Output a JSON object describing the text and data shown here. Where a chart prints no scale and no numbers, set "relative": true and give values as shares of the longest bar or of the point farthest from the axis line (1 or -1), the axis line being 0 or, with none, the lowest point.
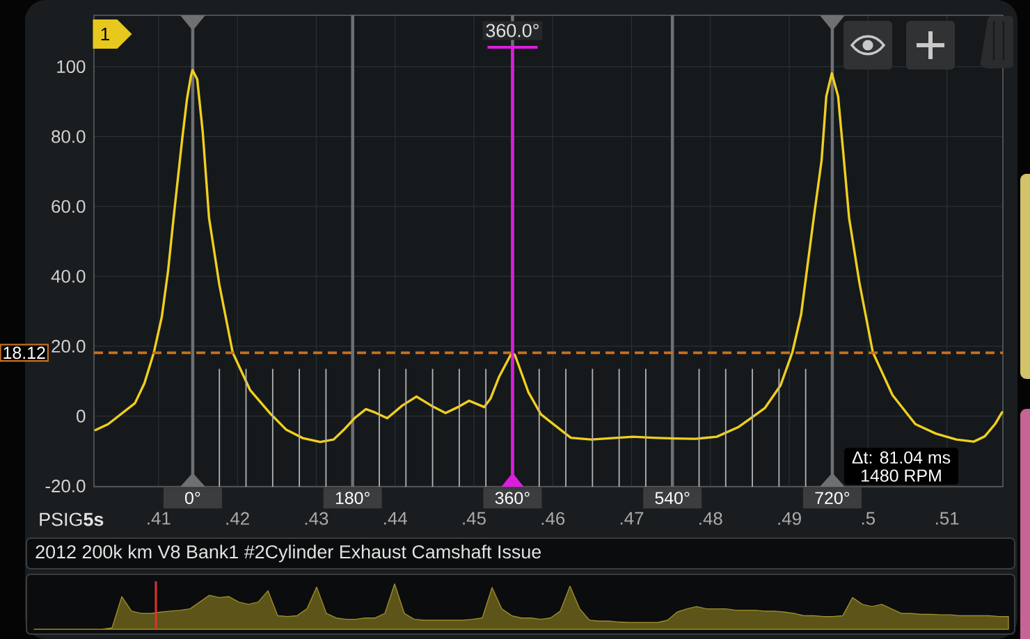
{
  "chart_data": [
    {
      "type": "line",
      "title": "2012 200k km V8 Bank1 #2Cylinder Exhaust Camshaft Issue",
      "ylabel": "PSIG**5s**",
      "x": [
        0.402,
        0.4036,
        0.4049,
        0.407,
        0.4082,
        0.4094,
        0.4104,
        0.4112,
        0.4119,
        0.413,
        0.4136,
        0.4141,
        0.4143,
        0.4149,
        0.4156,
        0.4164,
        0.4177,
        0.4194,
        0.4216,
        0.4241,
        0.4262,
        0.4283,
        0.4305,
        0.4322,
        0.4335,
        0.4349,
        0.4363,
        0.4375,
        0.439,
        0.4409,
        0.4427,
        0.4446,
        0.4464,
        0.4479,
        0.4494,
        0.4513,
        0.4521,
        0.4532,
        0.4548,
        0.4552,
        0.4569,
        0.4585,
        0.4606,
        0.4623,
        0.4649,
        0.4675,
        0.4702,
        0.4728,
        0.4755,
        0.4781,
        0.4808,
        0.4835,
        0.4852,
        0.4869,
        0.4889,
        0.4904,
        0.4915,
        0.4923,
        0.4931,
        0.4941,
        0.4947,
        0.4954,
        0.4962,
        0.4968,
        0.4976,
        0.4989,
        0.5006,
        0.5031,
        0.506,
        0.5086,
        0.5112,
        0.5134,
        0.5148,
        0.5161,
        0.517
      ],
      "series": [
        {
          "color": "#f0cf1f",
          "values": [
            -4.0,
            -2.3,
            0.0,
            3.7,
            9.4,
            18.2,
            28.3,
            41.5,
            56.7,
            79.4,
            90.7,
            97.3,
            99.0,
            96.4,
            81.3,
            56.7,
            37.7,
            18.2,
            7.5,
            0.9,
            -3.9,
            -6.3,
            -7.4,
            -6.7,
            -3.9,
            -0.5,
            2.0,
            1.0,
            -0.6,
            3.0,
            5.6,
            3.0,
            0.9,
            2.5,
            4.4,
            2.6,
            5.0,
            11.3,
            18.1,
            17.5,
            6.9,
            0.5,
            -3.2,
            -6.2,
            -6.7,
            -6.3,
            -5.9,
            -6.2,
            -6.4,
            -6.5,
            -5.9,
            -3.2,
            -0.5,
            2.3,
            8.8,
            18.3,
            29.0,
            42.8,
            56.6,
            73.1,
            91.5,
            98.1,
            91.5,
            76.7,
            56.6,
            38.2,
            18.3,
            6.0,
            -2.3,
            -5.0,
            -6.7,
            -7.3,
            -5.8,
            -2.3,
            1.1
          ]
        }
      ],
      "xlim": [
        0.4018,
        0.5171
      ],
      "xticks": [
        {
          "value": 0.41,
          "label": ".41"
        },
        {
          "value": 0.42,
          "label": ".42"
        },
        {
          "value": 0.43,
          "label": ".43"
        },
        {
          "value": 0.44,
          "label": ".44"
        },
        {
          "value": 0.45,
          "label": ".45"
        },
        {
          "value": 0.46,
          "label": ".46"
        },
        {
          "value": 0.47,
          "label": ".47"
        },
        {
          "value": 0.48,
          "label": ".48"
        },
        {
          "value": 0.49,
          "label": ".49"
        },
        {
          "value": 0.5,
          "label": ".5"
        },
        {
          "value": 0.51,
          "label": ".51"
        }
      ],
      "ylim": [
        -20.2,
        114.7
      ],
      "yticks": [
        {
          "value": -20,
          "label": "-20.0"
        },
        0,
        {
          "value": 20,
          "label": "20.0"
        },
        {
          "value": 40,
          "label": "40.0"
        },
        {
          "value": 60,
          "label": "60.0"
        },
        {
          "value": 80,
          "label": "80.0"
        },
        100
      ],
      "x2lim": [
        -111.2,
        912.0
      ],
      "x2ticks": [
        {
          "value": 0,
          "label": "0°"
        },
        {
          "value": 180,
          "label": "180°"
        },
        {
          "value": 360,
          "label": "360°"
        },
        {
          "value": 540,
          "label": "540°"
        },
        {
          "value": 720,
          "label": "720°"
        }
      ],
      "ref_lines": [
        {
          "axis": "y",
          "value": 18.12,
          "label": "18.12",
          "color": "#c8701e",
          "line_style": "dashed"
        },
        {
          "axis": "x2",
          "value": 360,
          "label": "360.0°",
          "color": "#dd1ddd"
        },
        {
          "axis": "x2",
          "value": 30,
          "color": "#b4b4b4"
        },
        {
          "axis": "x2",
          "value": 60,
          "color": "#b4b4b4"
        },
        {
          "axis": "x2",
          "value": 90,
          "color": "#b4b4b4"
        },
        {
          "axis": "x2",
          "value": 120,
          "color": "#b4b4b4"
        },
        {
          "axis": "x2",
          "value": 150,
          "color": "#b4b4b4"
        },
        {
          "axis": "x2",
          "value": 210,
          "color": "#b4b4b4"
        },
        {
          "axis": "x2",
          "value": 240,
          "color": "#b4b4b4"
        },
        {
          "axis": "x2",
          "value": 270,
          "color": "#b4b4b4"
        },
        {
          "axis": "x2",
          "value": 300,
          "color": "#b4b4b4"
        },
        {
          "axis": "x2",
          "value": 330,
          "color": "#b4b4b4"
        },
        {
          "axis": "x2",
          "value": 390,
          "color": "#b4b4b4"
        },
        {
          "axis": "x2",
          "value": 420,
          "color": "#b4b4b4"
        },
        {
          "axis": "x2",
          "value": 450,
          "color": "#b4b4b4"
        },
        {
          "axis": "x2",
          "value": 480,
          "color": "#b4b4b4"
        },
        {
          "axis": "x2",
          "value": 510,
          "color": "#b4b4b4"
        },
        {
          "axis": "x2",
          "value": 570,
          "color": "#b4b4b4"
        },
        {
          "axis": "x2",
          "value": 600,
          "color": "#b4b4b4"
        },
        {
          "axis": "x2",
          "value": 630,
          "color": "#b4b4b4"
        },
        {
          "axis": "x2",
          "value": 660,
          "color": "#b4b4b4"
        },
        {
          "axis": "x2",
          "value": 690,
          "color": "#b4b4b4"
        }
      ],
      "annotations": [
        "1",
        "Δt: 81.04 ms",
        "1480 RPM"
      ],
      "grid": true
    },
    {
      "type": "area",
      "relative": true,
      "tick_labels": false,
      "categories": [
        null,
        null,
        null,
        null,
        null,
        null,
        null,
        null,
        null,
        null,
        null,
        null,
        null,
        null,
        null,
        null,
        null,
        null,
        null,
        null,
        null,
        null,
        null,
        null,
        null,
        null,
        null,
        null,
        null,
        null,
        null,
        null,
        null,
        null,
        null,
        null,
        null,
        null,
        null,
        null,
        null,
        null,
        null,
        null,
        null,
        null,
        null,
        null,
        null,
        null,
        null,
        null,
        null,
        null,
        null,
        null,
        null,
        null,
        null,
        null,
        null,
        null,
        null,
        null,
        null,
        null,
        null,
        null,
        null,
        null,
        null,
        null,
        null,
        null,
        null,
        null,
        null,
        null,
        null,
        null,
        null,
        null,
        null,
        null,
        null,
        null,
        null,
        null,
        null,
        null,
        null,
        null,
        null,
        null,
        null,
        null,
        null,
        null,
        null,
        null,
        null
      ],
      "series": [
        {
          "color": "#9a8c2a",
          "values": [
            0,
            0,
            0,
            0,
            0,
            0,
            0,
            0,
            0.03,
            0.72,
            0.4,
            0.35,
            0.35,
            0.38,
            0.4,
            0.42,
            0.45,
            0.6,
            0.75,
            0.7,
            0.72,
            0.6,
            0.55,
            0.6,
            0.85,
            0.3,
            0.28,
            0.3,
            0.45,
            0.93,
            0.35,
            0.25,
            0.22,
            0.22,
            0.25,
            0.25,
            0.35,
            1.0,
            0.35,
            0.22,
            0.2,
            0.2,
            0.2,
            0.2,
            0.2,
            0.22,
            0.25,
            0.92,
            0.45,
            0.3,
            0.25,
            0.25,
            0.22,
            0.25,
            0.4,
            0.95,
            0.45,
            0.2,
            0.18,
            0.18,
            0.16,
            0.15,
            0.15,
            0.15,
            0.15,
            0.2,
            0.38,
            0.45,
            0.5,
            0.45,
            0.45,
            0.45,
            0.42,
            0.42,
            0.42,
            0.4,
            0.4,
            0.38,
            0.35,
            0.3,
            0.3,
            0.28,
            0.28,
            0.3,
            0.7,
            0.55,
            0.5,
            0.55,
            0.45,
            0.35,
            0.35,
            0.33,
            0.33,
            0.32,
            0.32,
            0.3,
            0.3,
            0.3,
            0.3,
            0.28,
            0.28
          ]
        }
      ]
    }
  ]
}
